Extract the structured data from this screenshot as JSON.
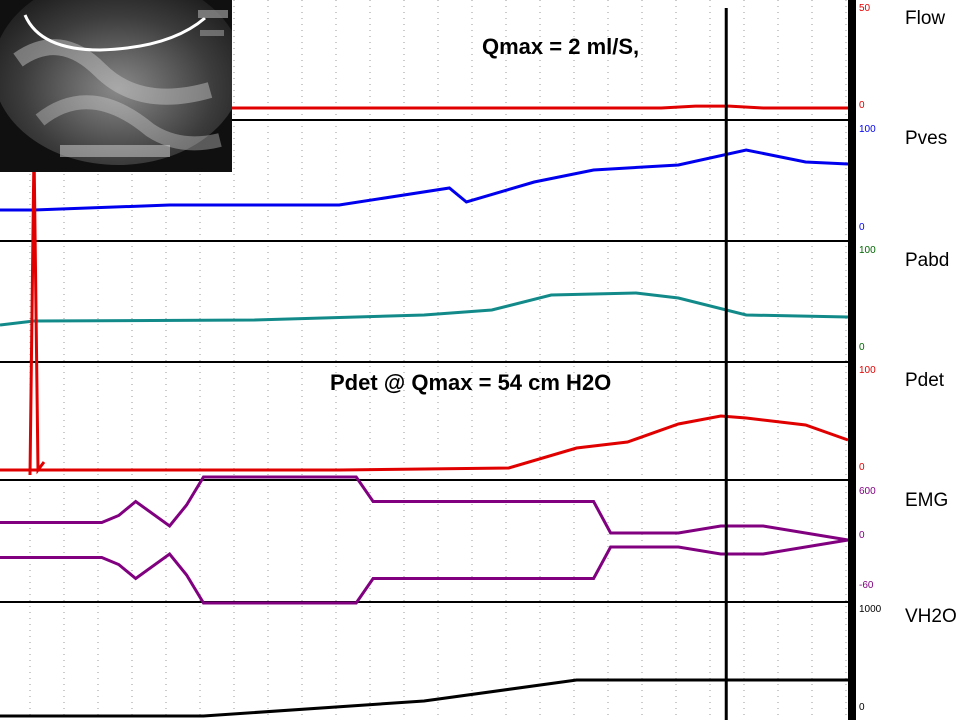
{
  "annotations": {
    "qmax": "Qmax = 2 ml/S,",
    "pdet_at_qmax": "Pdet @ Qmax = 54 cm H2O"
  },
  "channels": [
    {
      "name": "Flow",
      "color": "#e00000",
      "label_color": "#e00000",
      "scale_top": "50",
      "scale_bottom": "0"
    },
    {
      "name": "Pves",
      "color": "#0000ee",
      "label_color": "#0000ee",
      "scale_top": "100",
      "scale_bottom": "0"
    },
    {
      "name": "Pabd",
      "color": "#138a8a",
      "label_color": "#006400",
      "scale_top": "100",
      "scale_bottom": "0"
    },
    {
      "name": "Pdet",
      "color": "#e00000",
      "label_color": "#e00000",
      "scale_top": "100",
      "scale_bottom": "0"
    },
    {
      "name": "EMG",
      "color": "#800080",
      "label_color": "#800080",
      "scale_top": "600",
      "scale_mid": "0",
      "scale_bottom": "-60"
    },
    {
      "name": "VH2O",
      "color": "#000000",
      "label_color": "#000000",
      "scale_top": "1000",
      "scale_bottom": "0"
    }
  ],
  "image_inset": {
    "description_icon": "fluoroscopy-image"
  },
  "chart_data": {
    "type": "line",
    "title": "",
    "x_unit": "time index",
    "qmax_marker_x": 0.88,
    "series": [
      {
        "name": "Flow",
        "x": [
          0,
          0.78,
          0.82,
          0.86,
          0.9,
          0.94,
          1.0
        ],
        "values": [
          0,
          0,
          2,
          2,
          0,
          0,
          0
        ]
      },
      {
        "name": "Pves",
        "x": [
          0,
          0.04,
          0.2,
          0.4,
          0.53,
          0.55,
          0.63,
          0.7,
          0.8,
          0.88,
          0.95,
          1.0
        ],
        "values": [
          0,
          0,
          5,
          5,
          22,
          8,
          28,
          40,
          45,
          60,
          48,
          46
        ]
      },
      {
        "name": "Pabd",
        "x": [
          0,
          0.04,
          0.3,
          0.5,
          0.58,
          0.65,
          0.75,
          0.8,
          0.88,
          1.0
        ],
        "values": [
          0,
          4,
          5,
          10,
          15,
          30,
          32,
          27,
          10,
          8
        ]
      },
      {
        "name": "Pdet",
        "x": [
          0,
          0.1,
          0.4,
          0.6,
          0.68,
          0.74,
          0.8,
          0.85,
          0.88,
          0.95,
          1.0
        ],
        "values": [
          0,
          0,
          0,
          2,
          22,
          28,
          46,
          54,
          52,
          45,
          30
        ]
      },
      {
        "name": "VH2O",
        "x": [
          0,
          0.1,
          0.24,
          0.5,
          0.68,
          0.85,
          1.0
        ],
        "values": [
          0,
          0,
          0,
          15,
          36,
          36,
          36
        ]
      }
    ],
    "emg_envelope": {
      "x": [
        0,
        0.12,
        0.14,
        0.16,
        0.2,
        0.22,
        0.24,
        0.42,
        0.44,
        0.7,
        0.72,
        0.8,
        0.85,
        0.9,
        1.0
      ],
      "amplitude": [
        25,
        25,
        35,
        55,
        20,
        50,
        90,
        90,
        55,
        55,
        10,
        10,
        20,
        20,
        0
      ]
    }
  }
}
